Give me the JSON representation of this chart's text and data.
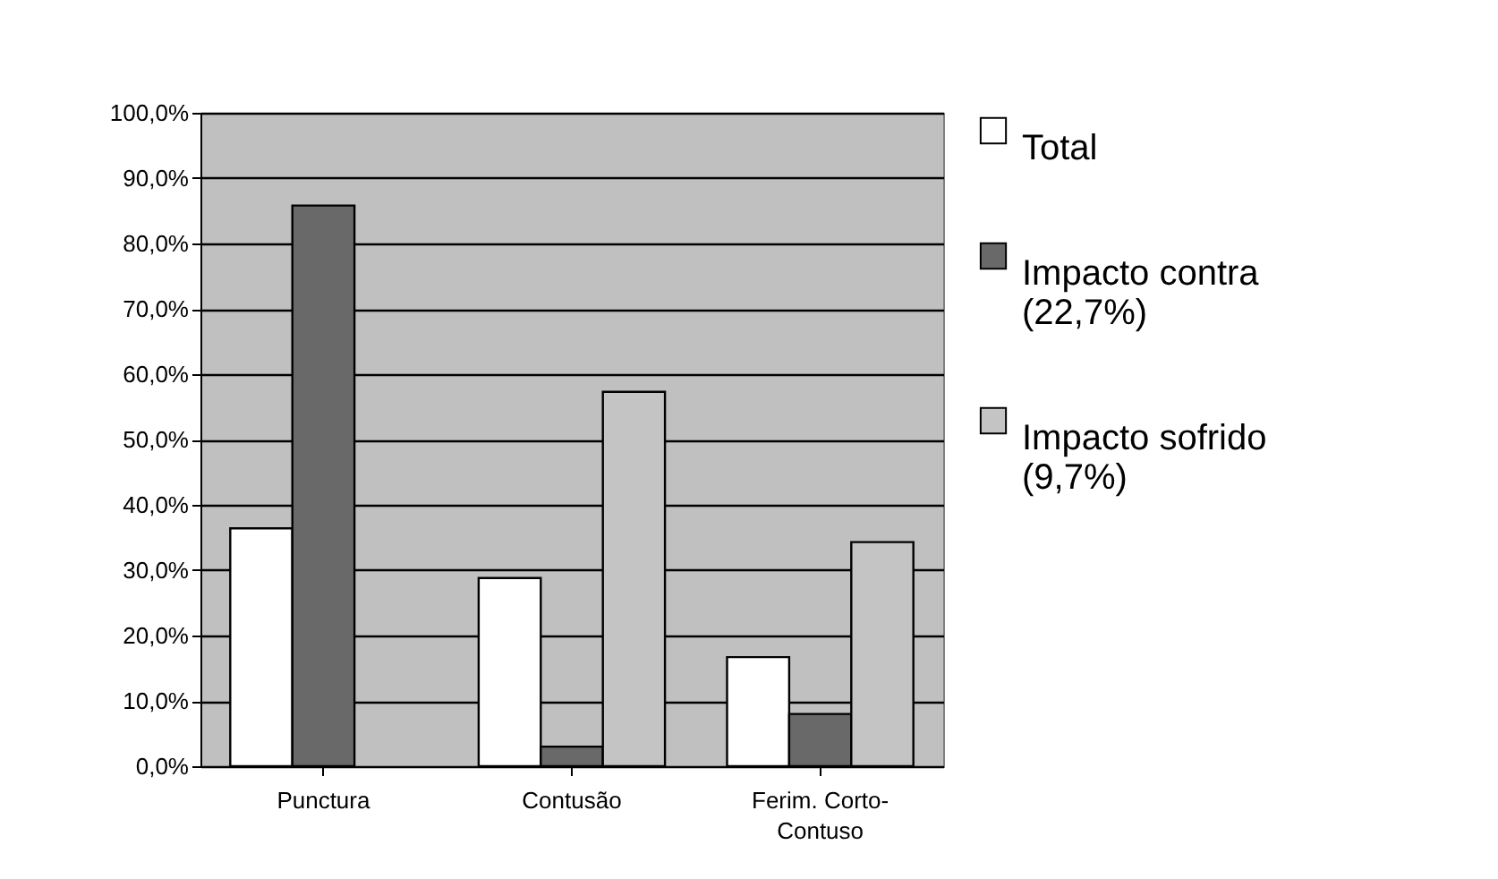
{
  "chart_data": {
    "type": "bar",
    "categories": [
      "Punctura",
      "Contusão",
      "Ferim. Corto-\nContuso"
    ],
    "series": [
      {
        "name": "Total",
        "color": "#ffffff",
        "values": [
          36.4,
          28.8,
          16.7
        ]
      },
      {
        "name": "Impacto contra\n(22,7%)",
        "color": "#696969",
        "values": [
          85.8,
          3.0,
          8.0
        ]
      },
      {
        "name": "Impacto sofrido\n(9,7%)",
        "color": "#c4c4c4",
        "values": [
          null,
          57.3,
          34.3
        ]
      }
    ],
    "ylim": [
      0,
      100
    ],
    "yticks": [
      {
        "value": 0,
        "label": "0,0%"
      },
      {
        "value": 10,
        "label": "10,0%"
      },
      {
        "value": 20,
        "label": "20,0%"
      },
      {
        "value": 30,
        "label": "30,0%"
      },
      {
        "value": 40,
        "label": "40,0%"
      },
      {
        "value": 50,
        "label": "50,0%"
      },
      {
        "value": 60,
        "label": "60,0%"
      },
      {
        "value": 70,
        "label": "70,0%"
      },
      {
        "value": 80,
        "label": "80,0%"
      },
      {
        "value": 90,
        "label": "90,0%"
      },
      {
        "value": 100,
        "label": "100,0%"
      }
    ],
    "grid": "y",
    "legend": "right"
  }
}
